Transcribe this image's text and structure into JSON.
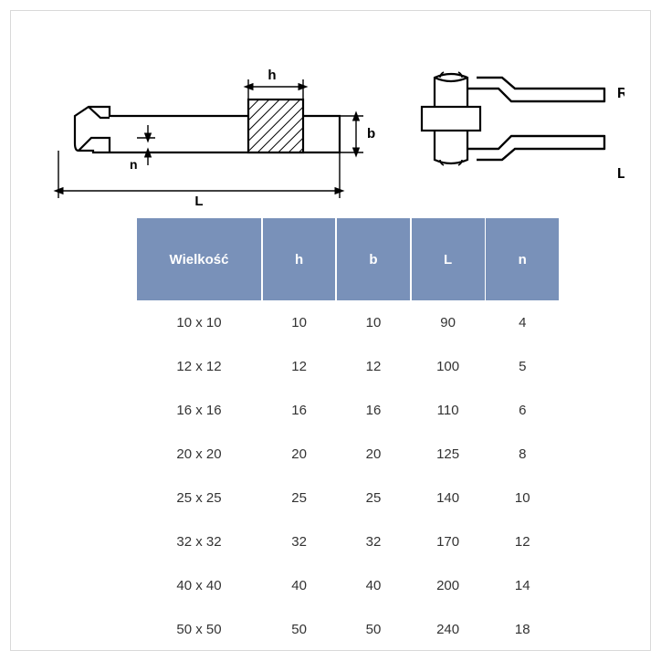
{
  "diagram": {
    "labels": {
      "h": "h",
      "b": "b",
      "n": "n",
      "L": "L",
      "R": "R",
      "Lside": "L"
    },
    "stroke": "#000000",
    "stroke_width": 2.2,
    "hatch_fill": "#ffffff"
  },
  "table": {
    "header_bg": "#7991b9",
    "header_gap": "#ffffff",
    "header_fg": "#ffffff",
    "cell_fg": "#333333",
    "columns": [
      "Wielkość",
      "h",
      "b",
      "L",
      "n"
    ],
    "rows": [
      [
        "10 x 10",
        "10",
        "10",
        "90",
        "4"
      ],
      [
        "12 x 12",
        "12",
        "12",
        "100",
        "5"
      ],
      [
        "16 x 16",
        "16",
        "16",
        "110",
        "6"
      ],
      [
        "20 x 20",
        "20",
        "20",
        "125",
        "8"
      ],
      [
        "25 x 25",
        "25",
        "25",
        "140",
        "10"
      ],
      [
        "32 x 32",
        "32",
        "32",
        "170",
        "12"
      ],
      [
        "40 x 40",
        "40",
        "40",
        "200",
        "14"
      ],
      [
        "50 x 50",
        "50",
        "50",
        "240",
        "18"
      ]
    ]
  }
}
